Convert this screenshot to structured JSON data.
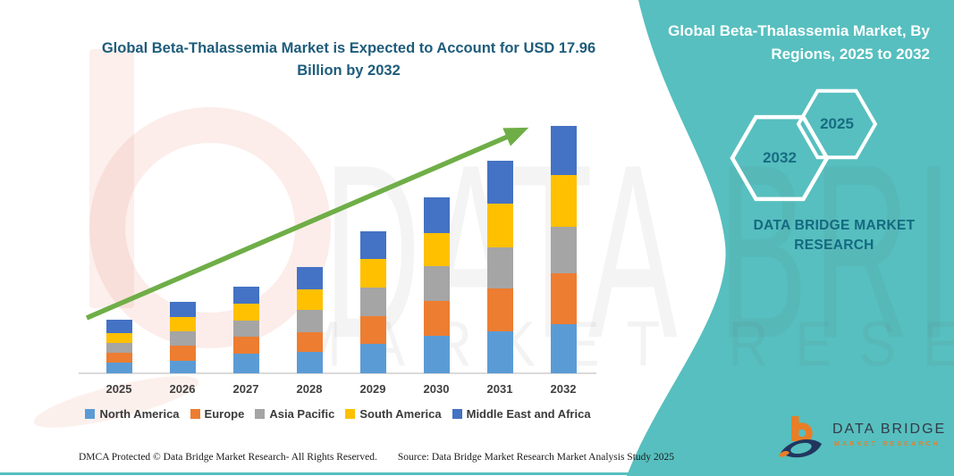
{
  "chart_data": {
    "type": "bar",
    "stacked": true,
    "title": "Global Beta-Thalassemia Market is Expected to Account for USD 17.96 Billion by 2032",
    "categories": [
      "2025",
      "2026",
      "2027",
      "2028",
      "2029",
      "2030",
      "2031",
      "2032"
    ],
    "series": [
      {
        "name": "North America",
        "color": "#5B9BD5",
        "values": [
          12,
          14,
          22,
          24,
          33,
          42,
          47,
          55
        ]
      },
      {
        "name": "Europe",
        "color": "#ED7D31",
        "values": [
          11,
          17,
          19,
          22,
          31,
          39,
          48,
          57
        ]
      },
      {
        "name": "Asia Pacific",
        "color": "#A5A5A5",
        "values": [
          11,
          16,
          18,
          25,
          32,
          39,
          46,
          52
        ]
      },
      {
        "name": "South America",
        "color": "#FFC000",
        "values": [
          11,
          16,
          19,
          23,
          32,
          37,
          49,
          58
        ]
      },
      {
        "name": "Middle East and Africa",
        "color": "#4472C4",
        "values": [
          15,
          17,
          19,
          25,
          31,
          40,
          48,
          55
        ]
      }
    ],
    "stack_totals": [
      60,
      80,
      97,
      119,
      159,
      197,
      238,
      277
    ],
    "units": "relative bar height in pixels (no numeric y-axis shown in source image)",
    "ylim": [
      0,
      290
    ],
    "grid": false,
    "y_axis_visible": false,
    "legend_position": "bottom",
    "annotations": [
      "Green upward trend arrow from 2025 bar to 2032 bar",
      "USD 17.96 Billion by 2032"
    ]
  },
  "side_panel": {
    "heading": "Global Beta-Thalassemia Market, By Regions, 2025 to 2032",
    "hexagons": [
      {
        "label": "2032"
      },
      {
        "label": "2025"
      }
    ],
    "brand_text": "DATA BRIDGE MARKET RESEARCH",
    "accent_color": "#57BFBF"
  },
  "watermark": {
    "line1": "DATA BRIDGE",
    "line2": "MARKET RESEARCH"
  },
  "logo": {
    "name": "DATA BRIDGE",
    "tagline": "MARKET RESEARCH"
  },
  "footer": {
    "dmca": "DMCA Protected © Data Bridge Market Research-  All Rights Reserved.",
    "source": "Source: Data Bridge Market Research  Market Analysis Study 2025"
  },
  "colors": {
    "trend_arrow": "#6FAE47",
    "title_text": "#1E5C7B",
    "axis_line": "#DADADA"
  }
}
